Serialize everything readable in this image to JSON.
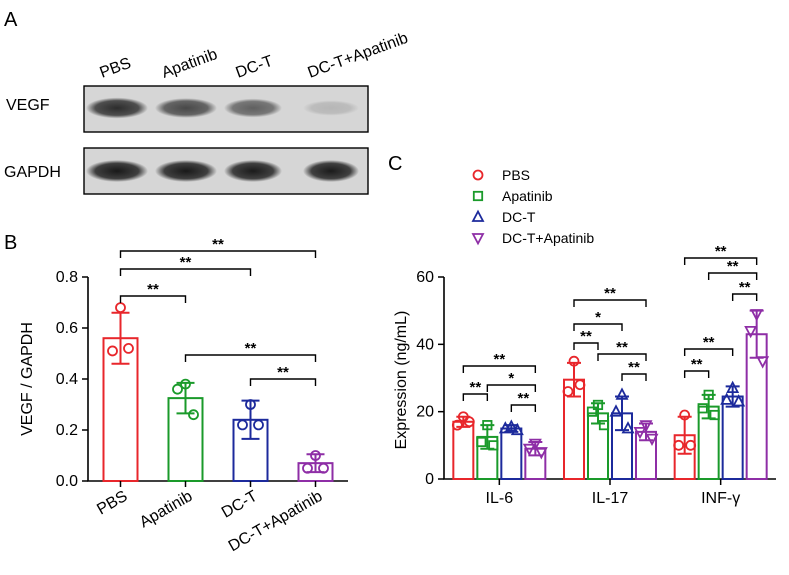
{
  "panels": {
    "a": "A",
    "b": "B",
    "c": "C"
  },
  "colors": {
    "pbs": "#e8262b",
    "apatinib": "#1a9a2a",
    "dct": "#1c2a9c",
    "combo": "#8e2ea6",
    "band": "#111111",
    "blot_bg": "#d6d6d6"
  },
  "blot": {
    "lanes": [
      "PBS",
      "Apatinib",
      "DC-T",
      "DC-T+Apatinib"
    ],
    "rows": [
      {
        "label": "VEGF",
        "intensity": [
          0.86,
          0.72,
          0.6,
          0.16
        ]
      },
      {
        "label": "GAPDH",
        "intensity": [
          0.96,
          0.96,
          0.95,
          0.95
        ]
      }
    ]
  },
  "chart_data": [
    {
      "type": "bar",
      "panel": "B",
      "categories": [
        "PBS",
        "Apatinib",
        "DC-T",
        "DC-T+Apatinib"
      ],
      "values": [
        0.56,
        0.325,
        0.24,
        0.07
      ],
      "errors": [
        0.1,
        0.06,
        0.075,
        0.035
      ],
      "points": [
        [
          0.68,
          0.51,
          0.52
        ],
        [
          0.38,
          0.36,
          0.26
        ],
        [
          0.3,
          0.22,
          0.22
        ],
        [
          0.1,
          0.05,
          0.05
        ]
      ],
      "markers": [
        "circle",
        "circle",
        "circle",
        "circle"
      ],
      "ylabel": "VEGF / GAPDH",
      "ylim": [
        0,
        0.8
      ],
      "yticks": [
        "0.0",
        "0.2",
        "0.4",
        "0.6",
        "0.8"
      ],
      "significance": [
        {
          "from": 0,
          "to": 1,
          "label": "**"
        },
        {
          "from": 0,
          "to": 2,
          "label": "**"
        },
        {
          "from": 0,
          "to": 3,
          "label": "**"
        },
        {
          "from": 1,
          "to": 3,
          "label": "**"
        },
        {
          "from": 2,
          "to": 3,
          "label": "**"
        }
      ]
    },
    {
      "type": "bar",
      "panel": "C",
      "categories": [
        "IL-6",
        "IL-17",
        "INF-γ"
      ],
      "series": [
        {
          "name": "PBS",
          "marker": "circle",
          "values": [
            17,
            29.5,
            13
          ],
          "errors": [
            1.5,
            5,
            5.5
          ],
          "points": [
            [
              18.5,
              16,
              17
            ],
            [
              35,
              26,
              28
            ],
            [
              19,
              10,
              10
            ]
          ]
        },
        {
          "name": "Apatinib",
          "marker": "square",
          "values": [
            12.5,
            19.5,
            21.5
          ],
          "errors": [
            3.5,
            3,
            3.5
          ],
          "points": [
            [
              16,
              11,
              10
            ],
            [
              22,
              20,
              16
            ],
            [
              25,
              21,
              19
            ]
          ]
        },
        {
          "name": "DC-T",
          "marker": "triangle",
          "values": [
            15,
            19.5,
            24.5
          ],
          "errors": [
            1,
            5,
            3
          ],
          "points": [
            [
              15.5,
              15,
              14.5
            ],
            [
              25,
              20,
              15
            ],
            [
              27,
              23.5,
              23
            ]
          ]
        },
        {
          "name": "DC-T+Apatinib",
          "marker": "triangle-down",
          "values": [
            9,
            14,
            43
          ],
          "errors": [
            2,
            2.5,
            7
          ],
          "points": [
            [
              10.5,
              9,
              8
            ],
            [
              16,
              14,
              12
            ],
            [
              49,
              44,
              35
            ]
          ]
        }
      ],
      "ylabel": "Expression (ng/mL)",
      "ylim": [
        0,
        60
      ],
      "yticks": [
        "0",
        "20",
        "40",
        "60"
      ],
      "legend_position": "top-left",
      "significance": [
        {
          "group": 0,
          "from": 0,
          "to": 1,
          "label": "**"
        },
        {
          "group": 0,
          "from": 0,
          "to": 3,
          "label": "**"
        },
        {
          "group": 0,
          "from": 1,
          "to": 3,
          "label": "*"
        },
        {
          "group": 0,
          "from": 2,
          "to": 3,
          "label": "**"
        },
        {
          "group": 1,
          "from": 0,
          "to": 1,
          "label": "**"
        },
        {
          "group": 1,
          "from": 0,
          "to": 2,
          "label": "*"
        },
        {
          "group": 1,
          "from": 0,
          "to": 3,
          "label": "**"
        },
        {
          "group": 1,
          "from": 1,
          "to": 3,
          "label": "**"
        },
        {
          "group": 1,
          "from": 2,
          "to": 3,
          "label": "**"
        },
        {
          "group": 2,
          "from": 0,
          "to": 1,
          "label": "**"
        },
        {
          "group": 2,
          "from": 0,
          "to": 2,
          "label": "**"
        },
        {
          "group": 2,
          "from": 0,
          "to": 3,
          "label": "**"
        },
        {
          "group": 2,
          "from": 1,
          "to": 3,
          "label": "**"
        },
        {
          "group": 2,
          "from": 2,
          "to": 3,
          "label": "**"
        }
      ]
    }
  ]
}
